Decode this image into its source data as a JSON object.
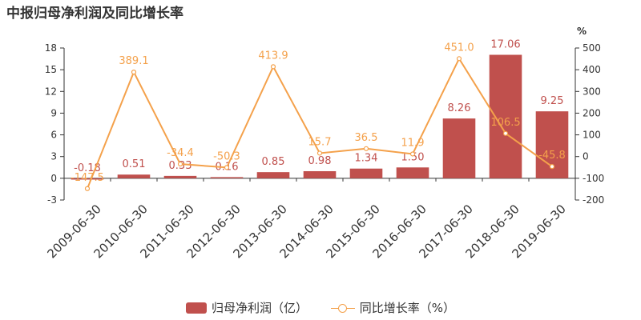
{
  "chart_data": {
    "type": "bar",
    "title": "中报归母净利润及同比增长率",
    "categories": [
      "2009-06-30",
      "2010-06-30",
      "2011-06-30",
      "2012-06-30",
      "2013-06-30",
      "2014-06-30",
      "2015-06-30",
      "2016-06-30",
      "2017-06-30",
      "2018-06-30",
      "2019-06-30"
    ],
    "series": [
      {
        "name": "归母净利润（亿）",
        "type": "bar",
        "axis": "left",
        "color": "#c0504d",
        "values": [
          -0.18,
          0.51,
          0.33,
          0.16,
          0.85,
          0.98,
          1.34,
          1.5,
          8.26,
          17.06,
          9.25
        ],
        "labels": [
          "-0.18",
          "0.51",
          "0.33",
          "0.16",
          "0.85",
          "0.98",
          "1.34",
          "1.50",
          "8.26",
          "17.06",
          "9.25"
        ]
      },
      {
        "name": "同比增长率（%）",
        "type": "line",
        "axis": "right",
        "color": "#f4a14b",
        "values": [
          -147.5,
          389.1,
          -34.4,
          -50.3,
          413.9,
          15.7,
          36.5,
          11.9,
          451.0,
          106.5,
          -45.8
        ],
        "labels": [
          "-147.5",
          "389.1",
          "-34.4",
          "-50.3",
          "413.9",
          "15.7",
          "36.5",
          "11.9",
          "451.0",
          "106.5",
          "-45.8"
        ]
      }
    ],
    "y_left": {
      "range": [
        -3,
        18
      ],
      "ticks": [
        "-3",
        "0",
        "3",
        "6",
        "9",
        "12",
        "15",
        "18"
      ]
    },
    "y_right": {
      "label": "%",
      "range": [
        -200,
        500
      ],
      "ticks": [
        "-200",
        "-100",
        "0",
        "100",
        "200",
        "300",
        "400",
        "500"
      ]
    },
    "grid": false,
    "legend": "bottom"
  }
}
